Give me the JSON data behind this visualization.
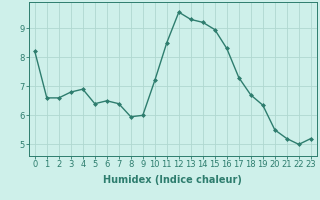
{
  "x": [
    0,
    1,
    2,
    3,
    4,
    5,
    6,
    7,
    8,
    9,
    10,
    11,
    12,
    13,
    14,
    15,
    16,
    17,
    18,
    19,
    20,
    21,
    22,
    23
  ],
  "y": [
    8.2,
    6.6,
    6.6,
    6.8,
    6.9,
    6.4,
    6.5,
    6.4,
    5.95,
    6.0,
    7.2,
    8.5,
    9.55,
    9.3,
    9.2,
    8.95,
    8.3,
    7.3,
    6.7,
    6.35,
    5.5,
    5.2,
    5.0,
    5.2
  ],
  "line_color": "#2e7d6e",
  "marker": "D",
  "marker_size": 2.0,
  "line_width": 1.0,
  "background_color": "#cef0ea",
  "grid_color": "#b0d8d0",
  "xlabel": "Humidex (Indice chaleur)",
  "xlabel_fontsize": 7,
  "tick_fontsize": 6,
  "ylim": [
    4.6,
    9.9
  ],
  "xlim": [
    -0.5,
    23.5
  ],
  "yticks": [
    5,
    6,
    7,
    8,
    9
  ],
  "xticks": [
    0,
    1,
    2,
    3,
    4,
    5,
    6,
    7,
    8,
    9,
    10,
    11,
    12,
    13,
    14,
    15,
    16,
    17,
    18,
    19,
    20,
    21,
    22,
    23
  ],
  "spine_color": "#2e7d6e"
}
